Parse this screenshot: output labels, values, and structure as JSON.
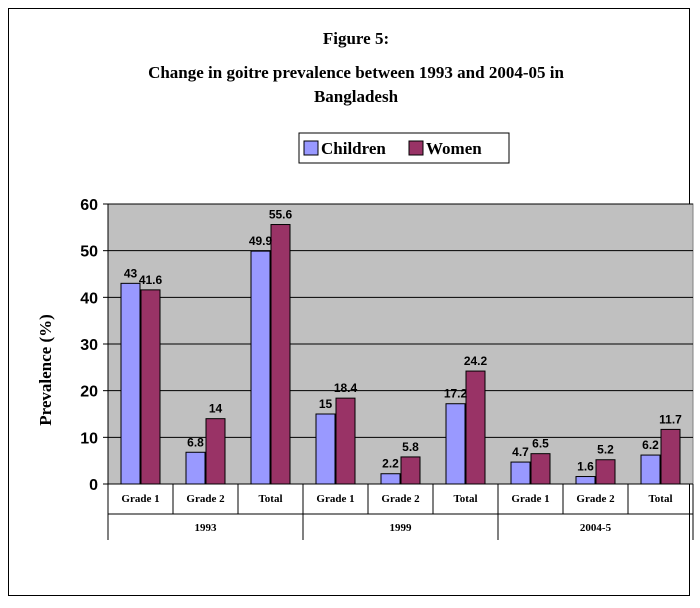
{
  "chart_data": {
    "type": "bar",
    "title": {
      "line1": "Figure 5:",
      "line2": "Change in goitre prevalence between 1993 and 2004-05 in",
      "line3": "Bangladesh"
    },
    "ylabel": "Prevalence (%)",
    "xlabel": "",
    "ylim": [
      0,
      60
    ],
    "yticks": [
      0,
      10,
      20,
      30,
      40,
      50,
      60
    ],
    "grid": true,
    "legend_position": "top-center",
    "groups": [
      "1993",
      "1999",
      "2004-5"
    ],
    "categories": [
      "Grade 1",
      "Grade 2",
      "Total",
      "Grade 1",
      "Grade 2",
      "Total",
      "Grade 1",
      "Grade 2",
      "Total"
    ],
    "series": [
      {
        "name": "Children",
        "color": "#9999ff",
        "values": [
          43,
          6.8,
          49.9,
          15,
          2.2,
          17.2,
          4.7,
          1.6,
          6.2
        ]
      },
      {
        "name": "Women",
        "color": "#993366",
        "values": [
          41.6,
          14,
          55.6,
          18.4,
          5.8,
          24.2,
          6.5,
          5.2,
          11.7
        ]
      }
    ],
    "data_labels": [
      [
        "43",
        "6.8",
        "49.9",
        "15",
        "2.2",
        "17.2",
        "4.7",
        "1.6",
        "6.2"
      ],
      [
        "41.6",
        "14",
        "55.6",
        "18.4",
        "5.8",
        "24.2",
        "6.5",
        "5.2",
        "11.7"
      ]
    ],
    "colors": {
      "plot_background": "#c0c0c0",
      "gridline": "#000000"
    }
  }
}
